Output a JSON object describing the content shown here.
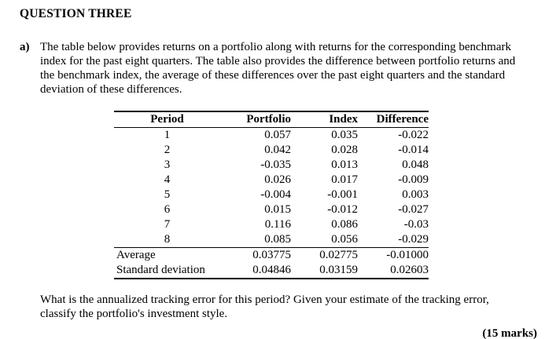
{
  "page": {
    "title": "QUESTION THREE",
    "item_label": "a)",
    "intro": "The table below provides returns on a portfolio along with returns for the corresponding benchmark index for the past eight quarters. The table also provides the difference between portfolio returns and the benchmark index, the average of these differences over the past eight quarters and the standard deviation of these differences.",
    "question": "What is the annualized tracking error for this period? Given your estimate of the tracking error, classify the portfolio's investment style.",
    "marks": "(15 marks)"
  },
  "table": {
    "columns": [
      "Period",
      "Portfolio",
      "Index",
      "Difference"
    ],
    "rows": [
      [
        "1",
        "0.057",
        "0.035",
        "-0.022"
      ],
      [
        "2",
        "0.042",
        "0.028",
        "-0.014"
      ],
      [
        "3",
        "-0.035",
        "0.013",
        "0.048"
      ],
      [
        "4",
        "0.026",
        "0.017",
        "-0.009"
      ],
      [
        "5",
        "-0.004",
        "-0.001",
        "0.003"
      ],
      [
        "6",
        "0.015",
        "-0.012",
        "-0.027"
      ],
      [
        "7",
        "0.116",
        "0.086",
        "-0.03"
      ],
      [
        "8",
        "0.085",
        "0.056",
        "-0.029"
      ]
    ],
    "summary_rows": [
      [
        "Average",
        "0.03775",
        "0.02775",
        "-0.01000"
      ],
      [
        "Standard deviation",
        "0.04846",
        "0.03159",
        "0.02603"
      ]
    ]
  }
}
